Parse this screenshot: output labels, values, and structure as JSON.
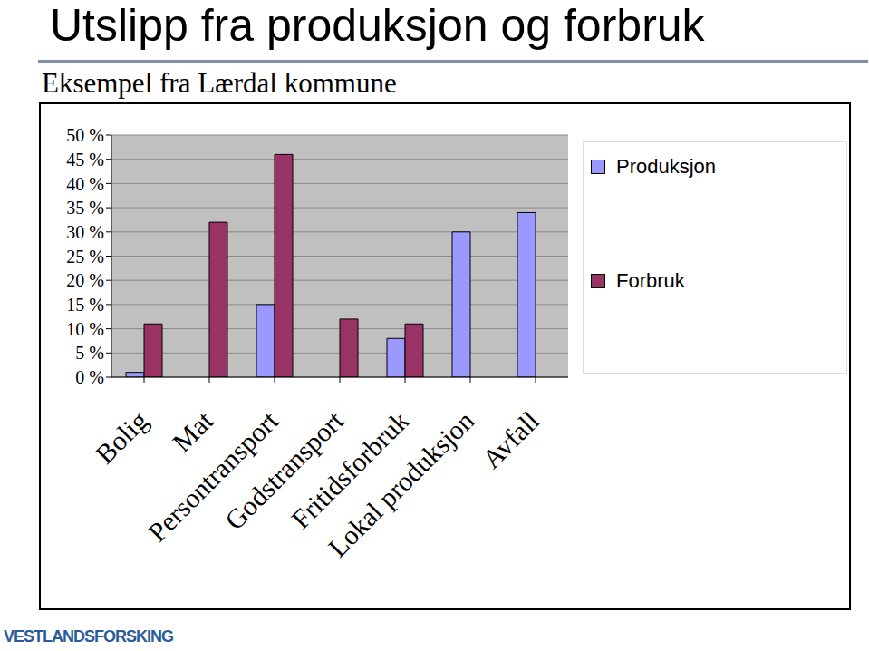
{
  "chart_data": {
    "type": "bar",
    "title": "Utslipp fra produksjon og forbruk",
    "subtitle": "Eksempel fra Lærdal kommune",
    "categories": [
      "Bolig",
      "Mat",
      "Persontransport",
      "Godstransport",
      "Fritidsforbruk",
      "Lokal produksjon",
      "Avfall"
    ],
    "series": [
      {
        "name": "Produksjon",
        "color": "#9999ff",
        "values": [
          1,
          null,
          15,
          null,
          8,
          30,
          34
        ]
      },
      {
        "name": "Forbruk",
        "color": "#993366",
        "values": [
          11,
          32,
          46,
          12,
          11,
          null,
          null
        ]
      }
    ],
    "ylim": [
      0,
      50
    ],
    "yticks": [
      {
        "value": 0,
        "label": "0 %"
      },
      {
        "value": 5,
        "label": "5 %"
      },
      {
        "value": 10,
        "label": "10 %"
      },
      {
        "value": 15,
        "label": "15 %"
      },
      {
        "value": 20,
        "label": "20 %"
      },
      {
        "value": 25,
        "label": "25 %"
      },
      {
        "value": 30,
        "label": "30 %"
      },
      {
        "value": 35,
        "label": "35 %"
      },
      {
        "value": 40,
        "label": "40 %"
      },
      {
        "value": 45,
        "label": "45 %"
      },
      {
        "value": 50,
        "label": "50 %"
      }
    ],
    "grid": true,
    "legend": "right"
  },
  "logo": "VESTLANDSFORSKING"
}
